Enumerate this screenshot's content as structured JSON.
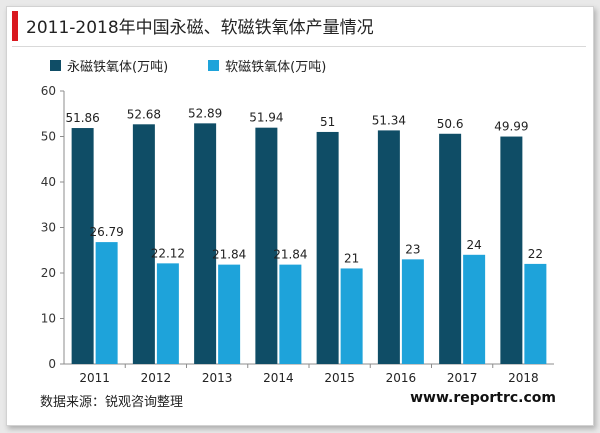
{
  "title": "2011-2018年中国永磁、软磁铁氧体产量情况",
  "source": "数据来源：锐观咨询整理",
  "website": "www.reportrc.com",
  "colors": {
    "accent": "#d9181f",
    "series1": "#0f4d66",
    "series2": "#1ea3da"
  },
  "chart_data": {
    "type": "bar",
    "categories": [
      "2011",
      "2012",
      "2013",
      "2014",
      "2015",
      "2016",
      "2017",
      "2018"
    ],
    "series": [
      {
        "name": "永磁铁氧体(万吨)",
        "values": [
          51.86,
          52.68,
          52.89,
          51.94,
          51,
          51.34,
          50.6,
          49.99
        ],
        "labels": [
          "51.86",
          "52.68",
          "52.89",
          "51.94",
          "51",
          "51.34",
          "50.6",
          "49.99"
        ]
      },
      {
        "name": "软磁铁氧体(万吨)",
        "values": [
          26.79,
          22.12,
          21.84,
          21.84,
          21,
          23,
          24,
          22
        ],
        "labels": [
          "26.79",
          "22.12",
          "21.84",
          "21.84",
          "21",
          "23",
          "24",
          "22"
        ]
      }
    ],
    "yticks": [
      "0",
      "10",
      "20",
      "30",
      "40",
      "50",
      "60"
    ],
    "ylim": [
      0,
      60
    ],
    "legend": "top-left",
    "grid": false
  }
}
